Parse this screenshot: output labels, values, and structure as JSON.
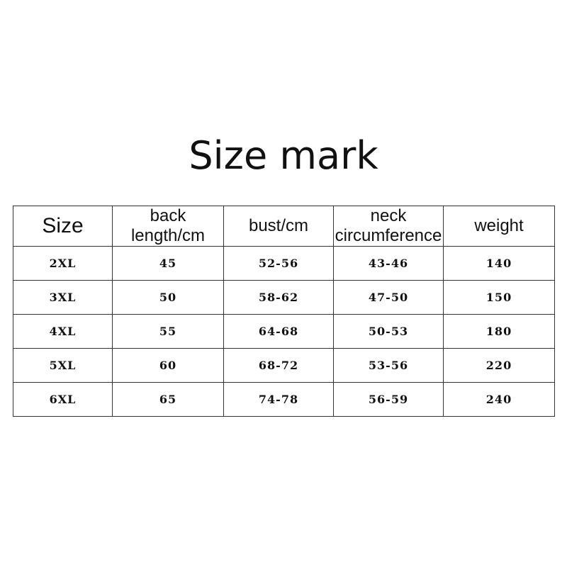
{
  "header": {
    "title": "Size mark"
  },
  "table": {
    "columns": [
      "Size",
      "back length/cm",
      "bust/cm",
      "neck circumference",
      "weight"
    ],
    "rows": [
      [
        "2XL",
        "45",
        "52-56",
        "43-46",
        "140"
      ],
      [
        "3XL",
        "50",
        "58-62",
        "47-50",
        "150"
      ],
      [
        "4XL",
        "55",
        "64-68",
        "50-53",
        "180"
      ],
      [
        "5XL",
        "60",
        "68-72",
        "53-56",
        "220"
      ],
      [
        "6XL",
        "65",
        "74-78",
        "56-59",
        "240"
      ]
    ]
  }
}
